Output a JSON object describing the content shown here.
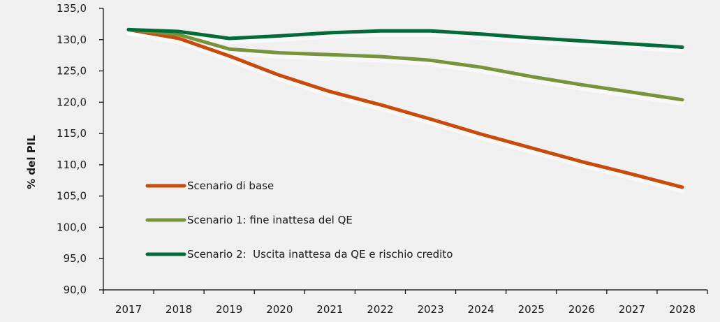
{
  "chart_data": {
    "type": "line",
    "title": "",
    "xlabel": "",
    "ylabel": "% del PIL",
    "ylim": [
      90,
      135
    ],
    "y_ticks": [
      "90,0",
      "95,0",
      "100,0",
      "105,0",
      "110,0",
      "115,0",
      "120,0",
      "125,0",
      "130,0",
      "135,0"
    ],
    "y_tick_values": [
      90,
      95,
      100,
      105,
      110,
      115,
      120,
      125,
      130,
      135
    ],
    "grid": false,
    "legend_position": "center-left",
    "x": [
      "2017",
      "2018",
      "2019",
      "2020",
      "2021",
      "2022",
      "2023",
      "2024",
      "2025",
      "2026",
      "2027",
      "2028"
    ],
    "series": [
      {
        "name": "Scenario di base",
        "color": "#c94b0c",
        "values": [
          131.6,
          130.2,
          127.4,
          124.3,
          121.7,
          119.6,
          117.3,
          114.9,
          112.7,
          110.5,
          108.5,
          106.4
        ]
      },
      {
        "name": "Scenario 1: fine inattesa del QE",
        "color": "#77933c",
        "values": [
          131.6,
          130.8,
          128.5,
          127.9,
          127.6,
          127.3,
          126.7,
          125.6,
          124.1,
          122.8,
          121.6,
          120.4
        ]
      },
      {
        "name": "Scenario 2:  Uscita inattesa da QE e rischio credito",
        "color": "#046a38",
        "values": [
          131.6,
          131.3,
          130.2,
          130.6,
          131.1,
          131.4,
          131.4,
          130.9,
          130.3,
          129.8,
          129.3,
          128.8
        ]
      }
    ]
  }
}
